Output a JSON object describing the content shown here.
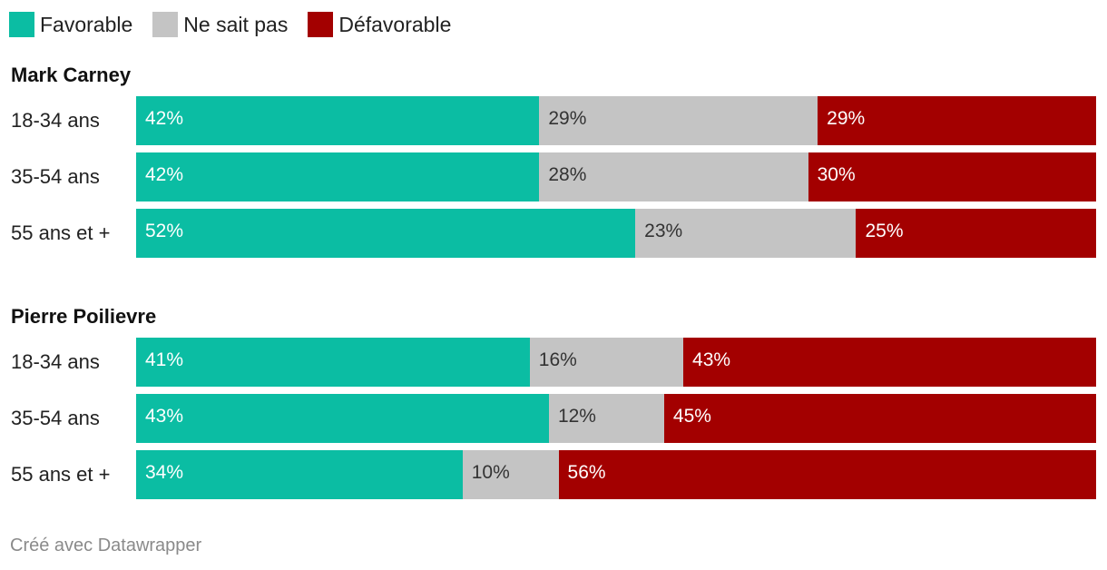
{
  "legend": {
    "favorable": "Favorable",
    "neutral": "Ne sait pas",
    "unfavorable": "Défavorable"
  },
  "colors": {
    "favorable": "#0bbda3",
    "neutral": "#c4c4c4",
    "unfavorable": "#a30000"
  },
  "chart_data": {
    "type": "stacked-bar-horizontal",
    "series_names": [
      "Favorable",
      "Ne sait pas",
      "Défavorable"
    ],
    "groups": [
      {
        "title": "Mark Carney",
        "rows": [
          {
            "label": "18-34 ans",
            "values": [
              42,
              29,
              29
            ],
            "labels": [
              "42%",
              "29%",
              "29%"
            ]
          },
          {
            "label": "35-54 ans",
            "values": [
              42,
              28,
              30
            ],
            "labels": [
              "42%",
              "28%",
              "30%"
            ]
          },
          {
            "label": "55 ans et +",
            "values": [
              52,
              23,
              25
            ],
            "labels": [
              "52%",
              "23%",
              "25%"
            ]
          }
        ]
      },
      {
        "title": "Pierre Poilievre",
        "rows": [
          {
            "label": "18-34 ans",
            "values": [
              41,
              16,
              43
            ],
            "labels": [
              "41%",
              "16%",
              "43%"
            ]
          },
          {
            "label": "35-54 ans",
            "values": [
              43,
              12,
              45
            ],
            "labels": [
              "43%",
              "12%",
              "45%"
            ]
          },
          {
            "label": "55 ans et +",
            "values": [
              34,
              10,
              56
            ],
            "labels": [
              "34%",
              "10%",
              "56%"
            ]
          }
        ]
      }
    ]
  },
  "footer": "Créé avec Datawrapper"
}
